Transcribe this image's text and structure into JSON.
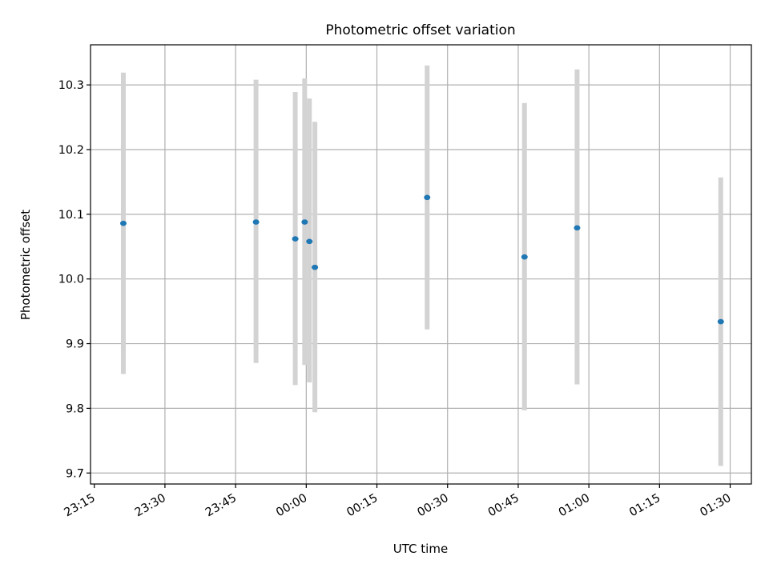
{
  "chart_data": {
    "type": "scatter",
    "title": "Photometric offset variation",
    "xlabel": "UTC time",
    "ylabel": "Photometric offset",
    "x_axis_type": "time",
    "x_ticks": [
      "23:15",
      "23:30",
      "23:45",
      "00:00",
      "00:15",
      "00:30",
      "00:45",
      "01:00",
      "01:15",
      "01:30"
    ],
    "y_ticks": [
      "9.7",
      "9.8",
      "9.9",
      "10.0",
      "10.1",
      "10.2",
      "10.3"
    ],
    "ylim": [
      9.683,
      10.362
    ],
    "grid": true,
    "marker_color": "#1f77b4",
    "errorbar_color": "#d3d3d3",
    "points": [
      {
        "x": "23:21:10",
        "y": 10.086,
        "err_low": 9.853,
        "err_high": 10.319
      },
      {
        "x": "23:49:20",
        "y": 10.088,
        "err_low": 9.87,
        "err_high": 10.308
      },
      {
        "x": "23:57:40",
        "y": 10.062,
        "err_low": 9.836,
        "err_high": 10.289
      },
      {
        "x": "23:59:40",
        "y": 10.088,
        "err_low": 9.867,
        "err_high": 10.31
      },
      {
        "x": "00:00:40",
        "y": 10.058,
        "err_low": 9.84,
        "err_high": 10.279
      },
      {
        "x": "00:01:50",
        "y": 10.018,
        "err_low": 9.794,
        "err_high": 10.243
      },
      {
        "x": "00:25:40",
        "y": 10.126,
        "err_low": 9.922,
        "err_high": 10.33
      },
      {
        "x": "00:46:20",
        "y": 10.034,
        "err_low": 9.797,
        "err_high": 10.272
      },
      {
        "x": "00:57:30",
        "y": 10.079,
        "err_low": 9.837,
        "err_high": 10.324
      },
      {
        "x": "01:28:00",
        "y": 9.934,
        "err_low": 9.711,
        "err_high": 10.157
      }
    ]
  }
}
